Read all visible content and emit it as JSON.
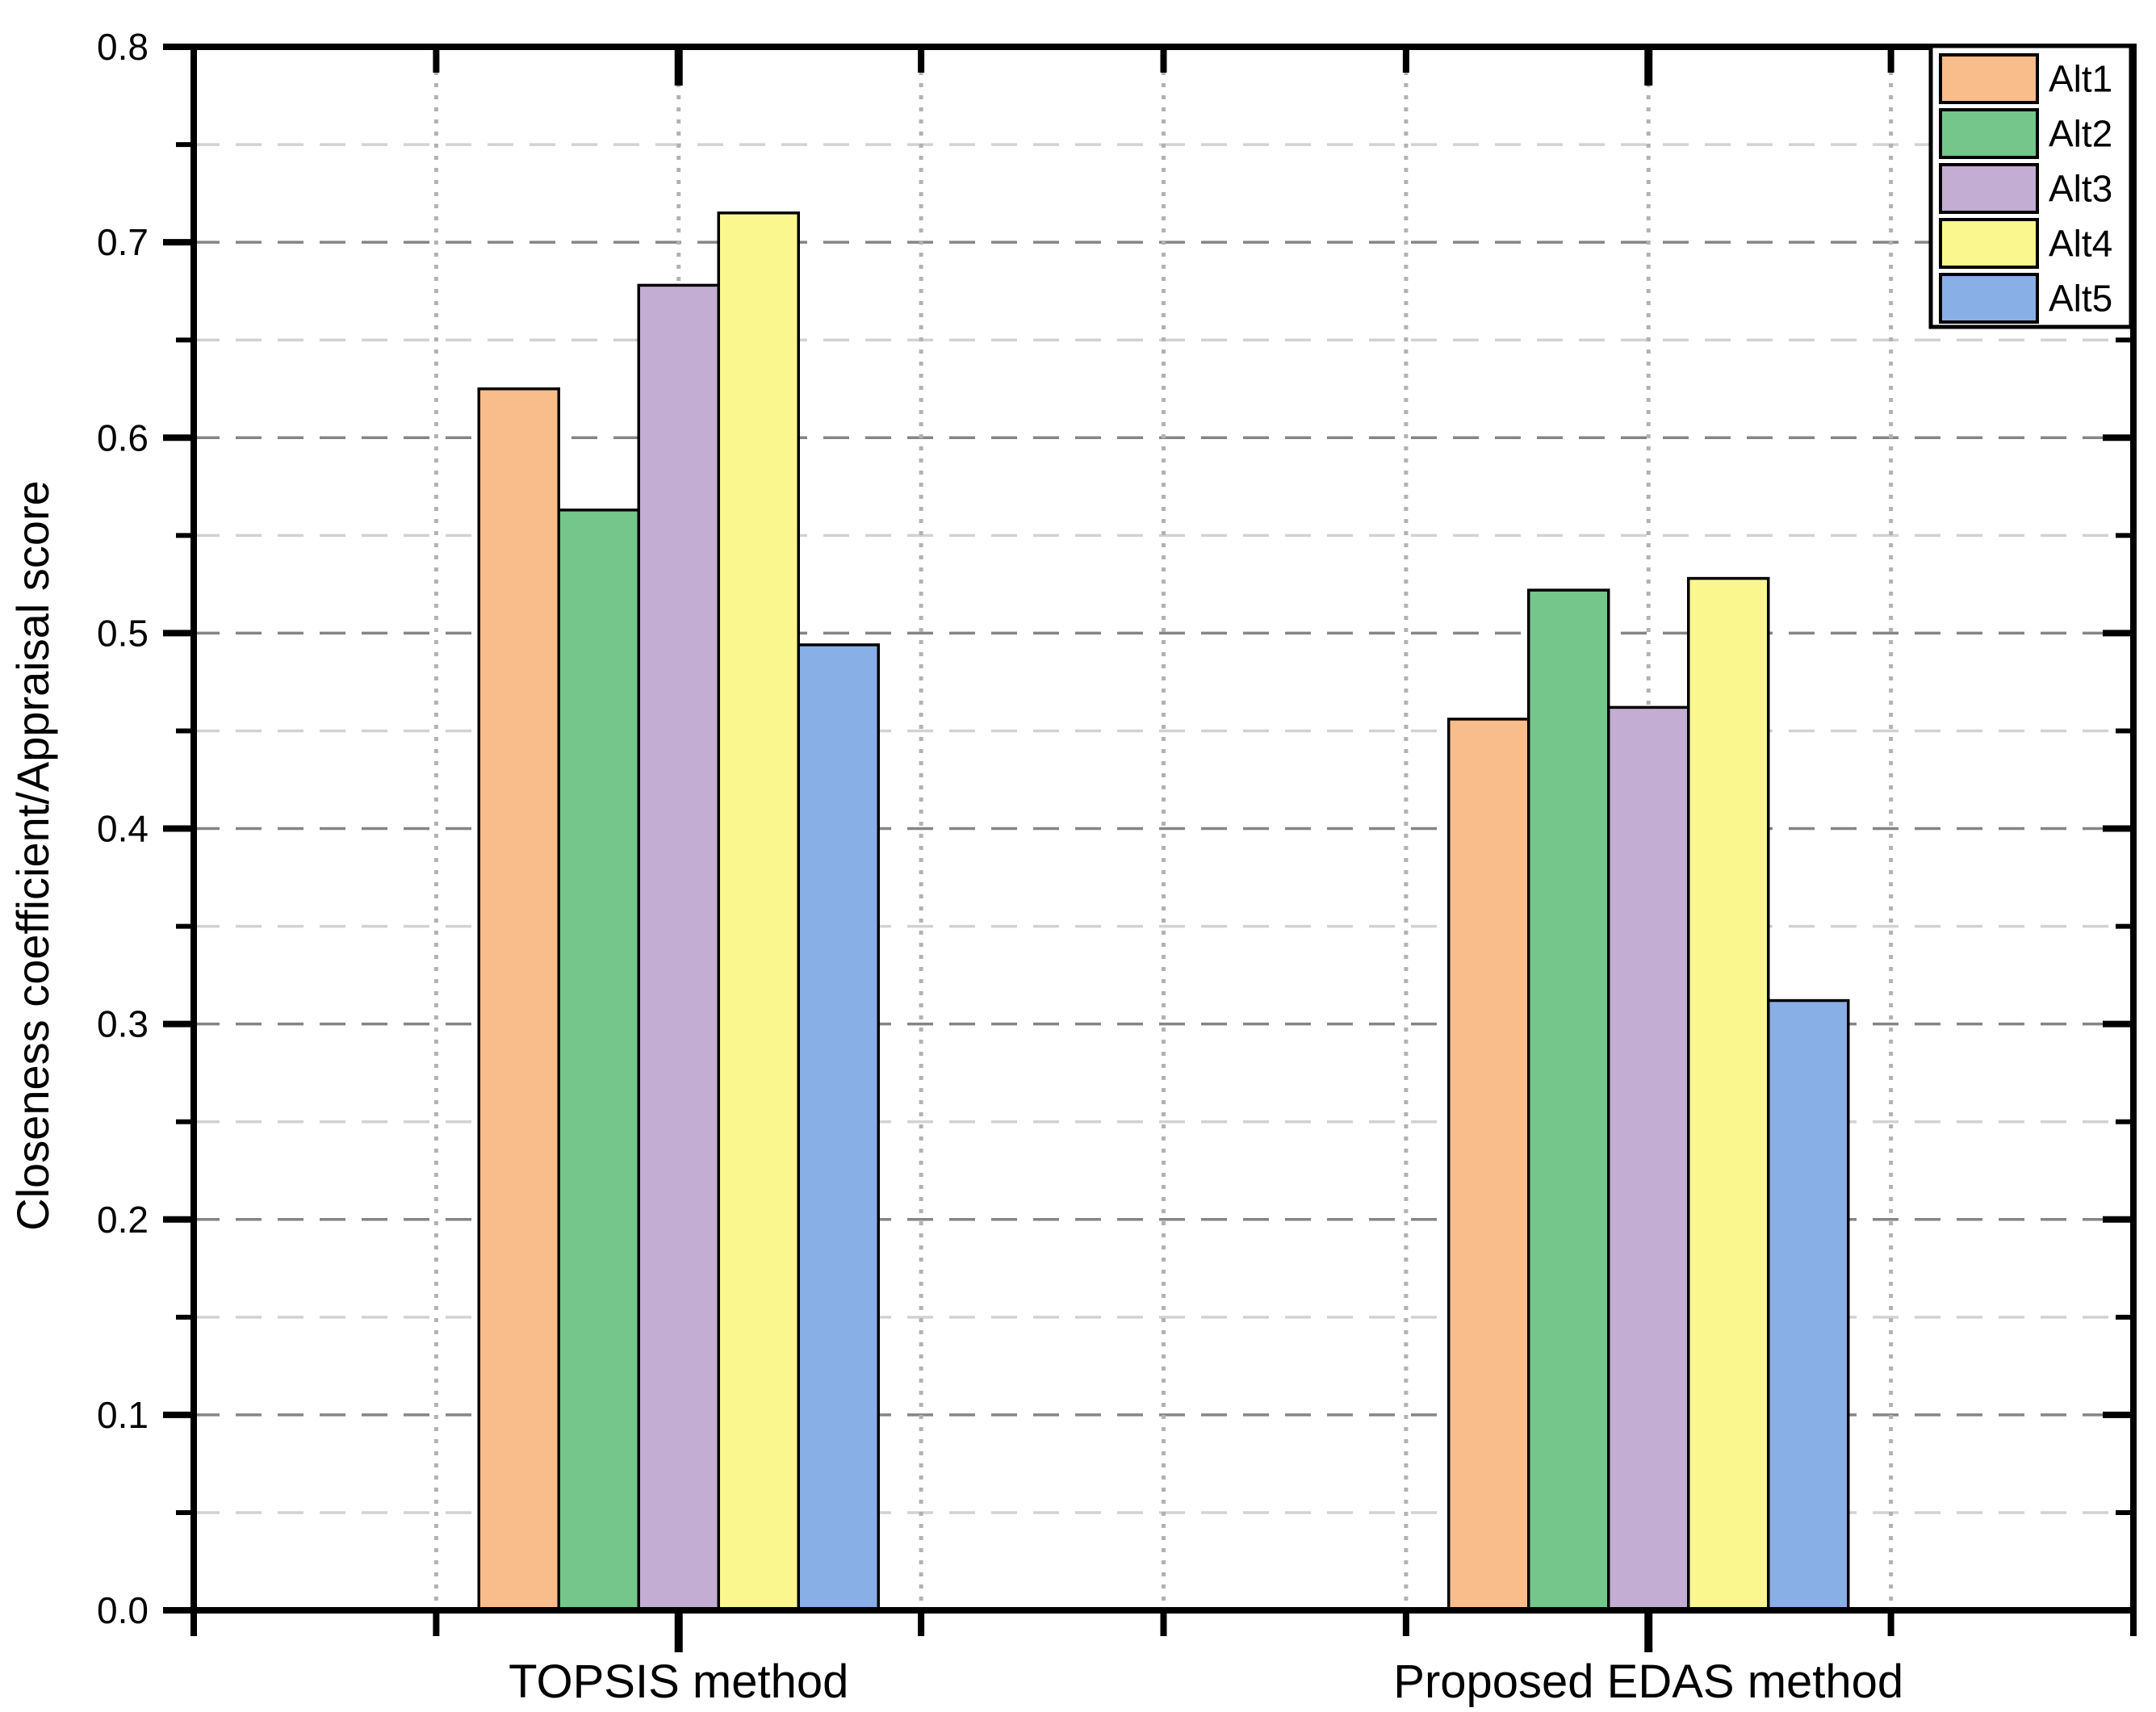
{
  "chart_data": {
    "type": "bar",
    "categories": [
      "TOPSIS method",
      "Proposed EDAS method"
    ],
    "series": [
      {
        "name": "Alt1",
        "color": "#F8BD8B",
        "values": [
          0.625,
          0.456
        ]
      },
      {
        "name": "Alt2",
        "color": "#74C68A",
        "values": [
          0.563,
          0.522
        ]
      },
      {
        "name": "Alt3",
        "color": "#C3ADD2",
        "values": [
          0.678,
          0.462
        ]
      },
      {
        "name": "Alt4",
        "color": "#FAF78F",
        "values": [
          0.715,
          0.528
        ]
      },
      {
        "name": "Alt5",
        "color": "#88AFE6",
        "values": [
          0.494,
          0.312
        ]
      }
    ],
    "title": "",
    "xlabel": "",
    "ylabel": "Closeness coefficient/Appraisal score",
    "ylim": [
      0,
      0.8
    ],
    "ytick_step": 0.1,
    "minor_tick_step": 0.05,
    "ytick_labels": [
      "0.0",
      "0.1",
      "0.2",
      "0.3",
      "0.4",
      "0.5",
      "0.6",
      "0.7",
      "0.8"
    ],
    "grid": {
      "horizontal": "dashed lines every 0.05, darker at 0.1 majors",
      "vertical": "dotted lines at interior x ticks",
      "major_color": "#858585",
      "minor_color": "#d2d2d2",
      "vertical_color": "#b2b2b2"
    },
    "legend": {
      "position": "top-right",
      "entries": [
        "Alt1",
        "Alt2",
        "Alt3",
        "Alt4",
        "Alt5"
      ]
    },
    "axis_color": "#000000",
    "bar_border_color": "#000000",
    "legend_border_color": "#000000",
    "legend_background": "#ffffff"
  }
}
